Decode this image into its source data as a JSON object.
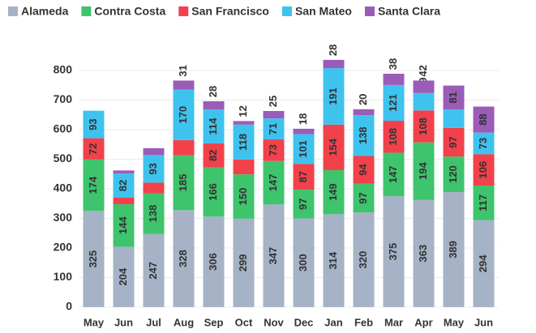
{
  "chart_data": {
    "type": "stacked_bar",
    "categories": [
      "May",
      "Jun",
      "Jul",
      "Aug",
      "Sep",
      "Oct",
      "Nov",
      "Dec",
      "Jan",
      "Feb",
      "Mar",
      "Apr",
      "May",
      "Jun"
    ],
    "series": [
      {
        "name": "Alameda",
        "color": "#a6b2c6",
        "values": [
          325,
          204,
          247,
          328,
          306,
          299,
          347,
          300,
          314,
          320,
          375,
          363,
          389,
          294
        ]
      },
      {
        "name": "Contra Costa",
        "color": "#3ec46d",
        "values": [
          174,
          144,
          138,
          185,
          166,
          150,
          147,
          97,
          149,
          97,
          147,
          194,
          120,
          117
        ]
      },
      {
        "name": "San Francisco",
        "color": "#f2414b",
        "values": [
          72,
          22,
          36,
          52,
          82,
          50,
          73,
          87,
          154,
          94,
          108,
          108,
          97,
          106
        ]
      },
      {
        "name": "San Mateo",
        "color": "#3ec3ef",
        "values": [
          93,
          82,
          93,
          170,
          114,
          118,
          71,
          101,
          191,
          138,
          121,
          59,
          62,
          73
        ]
      },
      {
        "name": "Santa Clara",
        "color": "#9b5cb8",
        "values": [
          null,
          10,
          23,
          31,
          28,
          12,
          25,
          18,
          28,
          20,
          38,
          42,
          81,
          88
        ],
        "value_labels": [
          null,
          null,
          null,
          "31",
          "28",
          "12",
          "25",
          "18",
          "28",
          "20",
          "38",
          "42",
          "81",
          "88"
        ]
      }
    ],
    "ylim": [
      0,
      900
    ],
    "yticks": [
      0,
      100,
      200,
      300,
      400,
      500,
      600,
      700,
      800
    ],
    "grid": true,
    "legend": "top"
  }
}
